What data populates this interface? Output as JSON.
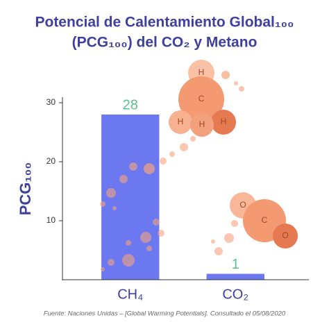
{
  "chart_data": {
    "type": "bar",
    "title": "Potencial de Calentamiento Global₁₀₀",
    "subtitle": "(PCG₁₀₀) del CO₂ y Metano",
    "y_label": "PCG₁₀₀",
    "categories": [
      "CH₄",
      "CO₂"
    ],
    "values": [
      28,
      1
    ],
    "color": "#6b78f0",
    "value_label_color": "#5bbf8c",
    "ylim": [
      0,
      30
    ],
    "yticks": [
      10,
      20,
      30
    ],
    "grid": false,
    "source": "Fuente: Naciones Unidas – [Global Warming Potentials]. Consultado el 05/08/2020",
    "annotations": [
      "H",
      "C",
      "H",
      "H",
      "H",
      "O",
      "C",
      "O"
    ]
  }
}
